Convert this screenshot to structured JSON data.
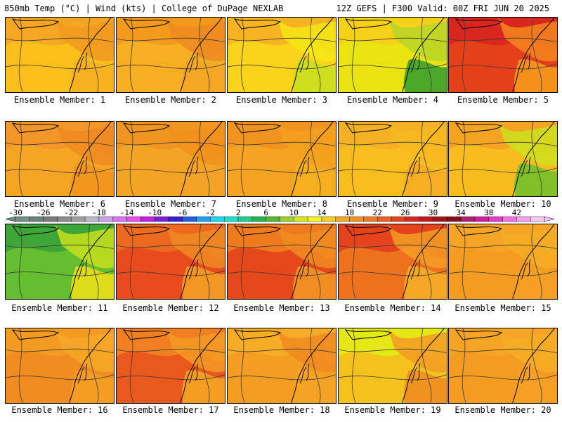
{
  "header": {
    "left": "850mb Temp (°C) | Wind (kts) | College of DuPage NEXLAB",
    "right": "12Z GEFS | F300 Valid: 00Z FRI JUN 20 2025"
  },
  "label_prefix": "Ensemble Member: ",
  "members": [
    {
      "id": "1",
      "fills": [
        "#f5a623",
        "#fbc21a",
        "#f19a1f",
        "#f7b020"
      ]
    },
    {
      "id": "2",
      "fills": [
        "#f39a1c",
        "#f7b225",
        "#ef8a1e",
        "#f5a623"
      ]
    },
    {
      "id": "3",
      "fills": [
        "#f7b322",
        "#fbd819",
        "#f3e812",
        "#c7df1d"
      ]
    },
    {
      "id": "4",
      "fills": [
        "#f7d01a",
        "#e8e612",
        "#b7d624",
        "#2f9e2d"
      ]
    },
    {
      "id": "5",
      "fills": [
        "#d9261e",
        "#e8451b",
        "#f5861c",
        "#f6a01d"
      ]
    },
    {
      "id": "6",
      "fills": [
        "#f2962a",
        "#f6a822",
        "#ef8a20",
        "#f1931d"
      ]
    },
    {
      "id": "7",
      "fills": [
        "#f09520",
        "#f5a726",
        "#f1911c",
        "#f4a22a"
      ]
    },
    {
      "id": "8",
      "fills": [
        "#f0941f",
        "#f6a622",
        "#f3a11d",
        "#f5b21f"
      ]
    },
    {
      "id": "9",
      "fills": [
        "#f5b024",
        "#f8c01d",
        "#f7b81f",
        "#f6ac25"
      ]
    },
    {
      "id": "10",
      "fills": [
        "#f5a322",
        "#f8c11f",
        "#cde01c",
        "#6cbf2b"
      ]
    },
    {
      "id": "11",
      "fills": [
        "#3ea637",
        "#6cc12f",
        "#c9df1c",
        "#f2e214"
      ]
    },
    {
      "id": "12",
      "fills": [
        "#ec6a1f",
        "#e8451c",
        "#f08a22",
        "#f4a326"
      ]
    },
    {
      "id": "13",
      "fills": [
        "#ee7a1e",
        "#e4401b",
        "#f08c20",
        "#f29a24"
      ]
    },
    {
      "id": "14",
      "fills": [
        "#e4431c",
        "#f07a1f",
        "#f49c24",
        "#f5b024"
      ]
    },
    {
      "id": "15",
      "fills": [
        "#f5a425",
        "#f39a22",
        "#f6ad25",
        "#f4a124"
      ]
    },
    {
      "id": "16",
      "fills": [
        "#f39a23",
        "#ef8a20",
        "#f6a825",
        "#f3a024"
      ]
    },
    {
      "id": "17",
      "fills": [
        "#ef7f20",
        "#e8521d",
        "#f39a23",
        "#f5a925"
      ]
    },
    {
      "id": "18",
      "fills": [
        "#f6ac24",
        "#f39a23",
        "#f08a20",
        "#f5a425"
      ]
    },
    {
      "id": "19",
      "fills": [
        "#e6e815",
        "#f4bb1f",
        "#f39a23",
        "#ef8a20"
      ]
    },
    {
      "id": "20",
      "fills": [
        "#f5a425",
        "#f39a22",
        "#f6ad25",
        "#f4a124"
      ]
    }
  ],
  "colorbar": {
    "ticks": [
      "-30",
      "-26",
      "-22",
      "-18",
      "-14",
      "-10",
      "-6",
      "-2",
      "2",
      "6",
      "10",
      "14",
      "18",
      "22",
      "26",
      "30",
      "34",
      "38",
      "42"
    ],
    "colors": [
      "#6f8f84",
      "#6f7f7a",
      "#7a7a7a",
      "#8c8c8c",
      "#a0a0a0",
      "#b9b9c9",
      "#c7a2e0",
      "#d873f0",
      "#e64bf0",
      "#c21fe0",
      "#7a1fd6",
      "#3a1fcc",
      "#1f5fe0",
      "#1f9ef0",
      "#1fd6f0",
      "#1fe0c8",
      "#1fcf8a",
      "#27b34a",
      "#55b82d",
      "#9fd02c",
      "#d8e81b",
      "#f9f31a",
      "#f7cf1b",
      "#f5a623",
      "#f28f1f",
      "#ef7a20",
      "#eb5e1e",
      "#e6421c",
      "#d9261e",
      "#c4161c",
      "#a3121a",
      "#8a0e17",
      "#b21e6e",
      "#d11fa0",
      "#e83ac8",
      "#f270e0",
      "#f6a0ea",
      "#f8c8f2"
    ]
  }
}
